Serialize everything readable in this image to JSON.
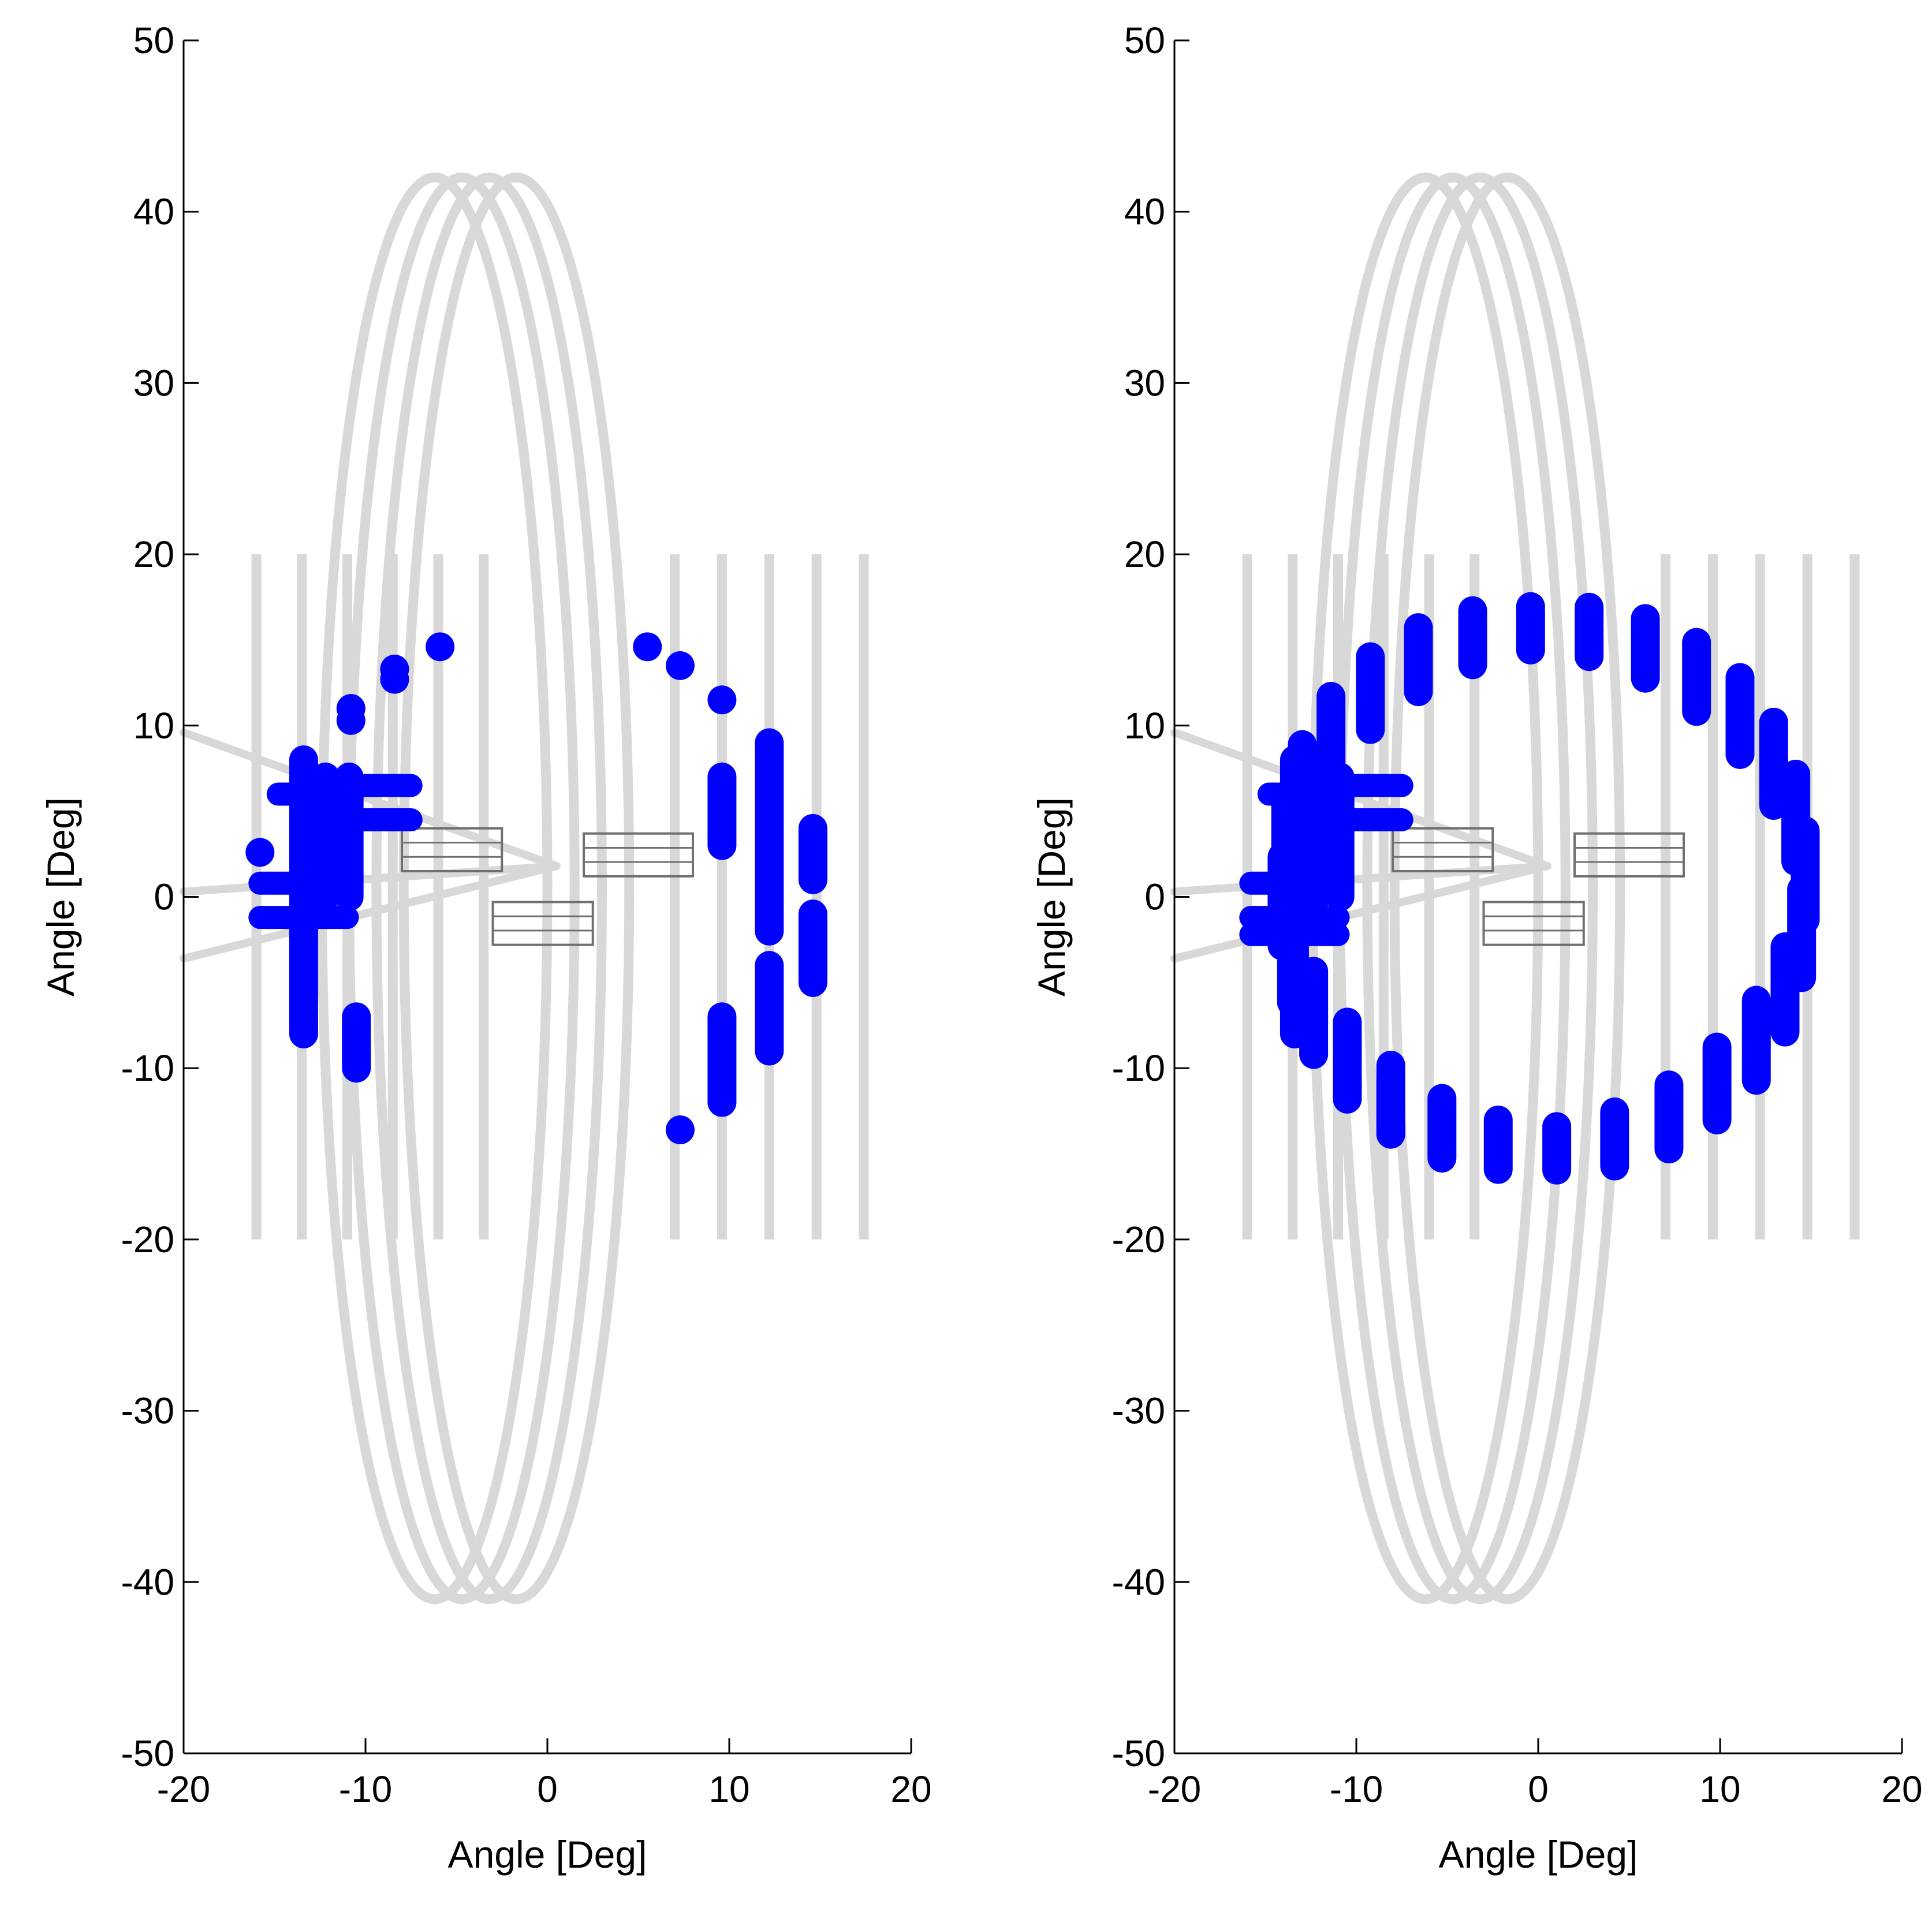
{
  "chart_data": [
    {
      "type": "scatter",
      "xlabel": "Angle [Deg]",
      "ylabel": "Angle [Deg]",
      "xlim": [
        -20,
        20
      ],
      "ylim": [
        -50,
        50
      ],
      "x_ticks": [
        "-20",
        "-10",
        "0",
        "10",
        "20"
      ],
      "y_ticks": [
        "50",
        "40",
        "30",
        "20",
        "10",
        "0",
        "-10",
        "-20",
        "-30",
        "-40",
        "-50"
      ],
      "grid": false,
      "background_pattern": {
        "color": "#d8d8d8",
        "elliptical_loops": [
          {
            "center": [
              -6.2,
              0.5
            ],
            "semi_axes": [
              6.2,
              41.5
            ]
          },
          {
            "center": [
              -4.7,
              0.5
            ],
            "semi_axes": [
              6.2,
              41.5
            ]
          },
          {
            "center": [
              -3.2,
              0.5
            ],
            "semi_axes": [
              6.2,
              41.5
            ]
          },
          {
            "center": [
              -1.7,
              0.5
            ],
            "semi_axes": [
              6.2,
              41.5
            ]
          }
        ],
        "left_vertical_lines": {
          "x": [
            -16,
            -13.5,
            -11,
            -8.5,
            -6,
            -3.5
          ],
          "y_range": [
            -20,
            20
          ]
        },
        "right_vertical_lines": {
          "x": [
            7,
            9.6,
            12.2,
            14.8,
            17.4
          ],
          "y_range": [
            -20,
            20
          ]
        },
        "rays": [
          [
            [
              -20,
              9.6
            ],
            [
              0.5,
              1.8
            ]
          ],
          [
            [
              -20,
              0.3
            ],
            [
              0.5,
              1.8
            ]
          ],
          [
            [
              -20,
              -3.6
            ],
            [
              0.5,
              1.8
            ]
          ]
        ],
        "small_boxes": [
          [
            -8,
            1.5,
            5.5,
            2.5
          ],
          [
            2,
            1.2,
            6,
            2.5
          ],
          [
            -3,
            -2.8,
            5.5,
            2.5
          ]
        ]
      },
      "series": [
        {
          "color": "#0000ff",
          "vertical_clusters": [
            {
              "x": -13.4,
              "y": [
                -8,
                8
              ]
            },
            {
              "x": -12.2,
              "y": [
                0,
                7
              ]
            },
            {
              "x": -10.9,
              "y": [
                0,
                7
              ]
            },
            {
              "x": -10.5,
              "y": [
                -10,
                -7
              ]
            },
            {
              "x": 9.6,
              "y": [
                -12,
                -7
              ]
            },
            {
              "x": 9.6,
              "y": [
                3,
                7
              ]
            },
            {
              "x": 12.2,
              "y": [
                -9,
                -4
              ]
            },
            {
              "x": 12.2,
              "y": [
                -2,
                9
              ]
            },
            {
              "x": 14.6,
              "y": [
                -5,
                -1
              ]
            },
            {
              "x": 14.6,
              "y": [
                1,
                4
              ]
            }
          ],
          "horizontal_clusters": [
            {
              "y": 6,
              "x": [
                -14.8,
                -11.5
              ]
            },
            {
              "y": 0.8,
              "x": [
                -15.8,
                -11
              ]
            },
            {
              "y": -1.2,
              "x": [
                -15.8,
                -11
              ]
            },
            {
              "y": 6.5,
              "x": [
                -11.5,
                -7.5
              ]
            },
            {
              "y": 4.5,
              "x": [
                -11.5,
                -7.5
              ]
            }
          ],
          "points": [
            [
              -15.8,
              2.6
            ],
            [
              -10.8,
              11
            ],
            [
              -10.8,
              10.3
            ],
            [
              -8.4,
              13.3
            ],
            [
              -8.4,
              12.7
            ],
            [
              -5.9,
              14.6
            ],
            [
              5.5,
              14.6
            ],
            [
              7.3,
              13.5
            ],
            [
              9.6,
              11.5
            ],
            [
              7.3,
              -13.6
            ]
          ]
        }
      ]
    },
    {
      "type": "scatter",
      "xlabel": "Angle [Deg]",
      "ylabel": "Angle [Deg]",
      "xlim": [
        -20,
        20
      ],
      "ylim": [
        -50,
        50
      ],
      "x_ticks": [
        "-20",
        "-10",
        "0",
        "10",
        "20"
      ],
      "y_ticks": [
        "50",
        "40",
        "30",
        "20",
        "10",
        "0",
        "-10",
        "-20",
        "-30",
        "-40",
        "-50"
      ],
      "grid": false,
      "background_pattern": "same as panel 1",
      "series": [
        {
          "color": "#0000ff",
          "left_structure": {
            "vertical_clusters": [
              {
                "x": -13.4,
                "y": [
                  -8,
                  8
                ]
              },
              {
                "x": -12.2,
                "y": [
                  0,
                  7
                ]
              },
              {
                "x": -10.9,
                "y": [
                  0,
                  7
                ]
              }
            ],
            "horizontal_clusters": [
              {
                "y": 6,
                "x": [
                  -14.8,
                  -11.5
                ]
              },
              {
                "y": 0.8,
                "x": [
                  -15.8,
                  -11
                ]
              },
              {
                "y": -1.2,
                "x": [
                  -15.8,
                  -11
                ]
              },
              {
                "y": 6.5,
                "x": [
                  -11.5,
                  -7.5
                ]
              },
              {
                "y": 4.5,
                "x": [
                  -11.5,
                  -7.5
                ]
              },
              {
                "y": -2.2,
                "x": [
                  -15.8,
                  -11
                ]
              }
            ]
          },
          "ring": {
            "center": [
              0.3,
              0.5
            ],
            "semi_axes": [
              14.4,
              15.2
            ],
            "segments": 28
          }
        }
      ]
    }
  ]
}
